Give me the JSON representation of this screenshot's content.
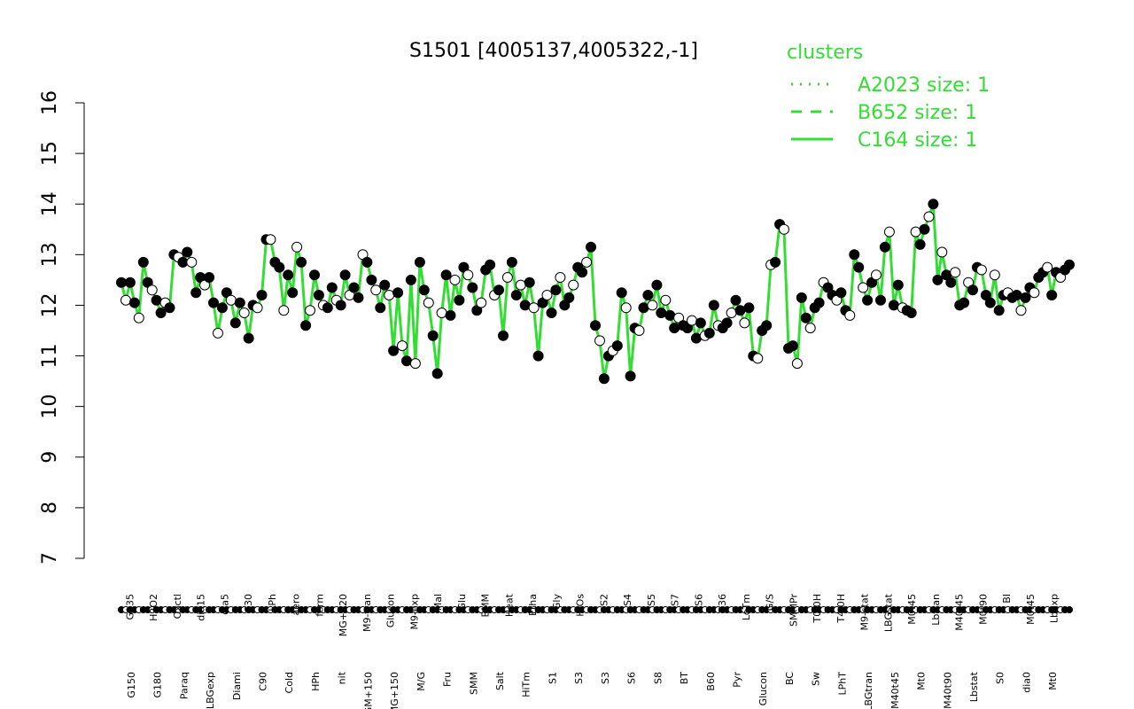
{
  "chart_data": {
    "type": "line",
    "title": "S1501 [4005137,4005322,-1]",
    "xlabel": "",
    "ylabel": "",
    "ylim": [
      7,
      16
    ],
    "yticks": [
      7,
      8,
      9,
      10,
      11,
      12,
      13,
      14,
      15,
      16
    ],
    "grid": false,
    "line_color": "#33dd33",
    "legend": {
      "title": "clusters",
      "placement": "top-right",
      "entries": [
        {
          "label": "A2023 size: 1",
          "style": "dotted"
        },
        {
          "label": "B652 size: 1",
          "style": "dashed"
        },
        {
          "label": "C164 size: 1",
          "style": "solid"
        }
      ]
    },
    "x_tick_labels_top": [
      "G135",
      "H2O2",
      "Oxctl",
      "dia15",
      "dia5",
      "C30",
      "LPh",
      "aero",
      "ferm",
      "MG+120",
      "M9-tran",
      "Glucon",
      "M9-exp",
      "Mal",
      "Glu",
      "BMM",
      "Heat",
      "Etha",
      "Gly",
      "HiOs",
      "S2",
      "S4",
      "S5",
      "S7",
      "S6",
      "B36",
      "LoTm",
      "G/S",
      "SMMPr",
      "T0.0H",
      "T4.0H",
      "M9-stat",
      "LBGstat",
      "M0t45",
      "Lbtran",
      "M40t45",
      "M0t90",
      "BI",
      "M0t45",
      "Lbexp"
    ],
    "x_tick_labels_bottom": [
      "G150",
      "G180",
      "Paraq",
      "LBGexp",
      "Diami",
      "C90",
      "Cold",
      "HPh",
      "nit",
      "GM+150",
      "MG+150",
      "M/G",
      "Fru",
      "SMM",
      "Salt",
      "HiTm",
      "S1",
      "S3",
      "S3",
      "S6",
      "S8",
      "BT",
      "B60",
      "Pyr",
      "Glucon",
      "BC",
      "Sw",
      "LPhT",
      "LBGtran",
      "M40t45",
      "Mt0",
      "M40t90",
      "Lbstat",
      "S0",
      "dia0",
      "Mt0"
    ],
    "points": [
      {
        "x": 1,
        "y": 12.45
      },
      {
        "x": 2,
        "y": 12.1
      },
      {
        "x": 3,
        "y": 12.45
      },
      {
        "x": 4,
        "y": 12.05
      },
      {
        "x": 5,
        "y": 11.75
      },
      {
        "x": 6,
        "y": 12.85
      },
      {
        "x": 7,
        "y": 12.45
      },
      {
        "x": 8,
        "y": 12.3
      },
      {
        "x": 9,
        "y": 12.1
      },
      {
        "x": 10,
        "y": 11.85
      },
      {
        "x": 11,
        "y": 12.05
      },
      {
        "x": 12,
        "y": 11.95
      },
      {
        "x": 13,
        "y": 13.0
      },
      {
        "x": 14,
        "y": 12.95
      },
      {
        "x": 15,
        "y": 12.85
      },
      {
        "x": 16,
        "y": 13.05
      },
      {
        "x": 17,
        "y": 12.85
      },
      {
        "x": 18,
        "y": 12.25
      },
      {
        "x": 19,
        "y": 12.55
      },
      {
        "x": 20,
        "y": 12.4
      },
      {
        "x": 21,
        "y": 12.55
      },
      {
        "x": 22,
        "y": 12.05
      },
      {
        "x": 23,
        "y": 11.45
      },
      {
        "x": 24,
        "y": 11.95
      },
      {
        "x": 25,
        "y": 12.25
      },
      {
        "x": 26,
        "y": 12.1
      },
      {
        "x": 27,
        "y": 11.65
      },
      {
        "x": 28,
        "y": 12.05
      },
      {
        "x": 29,
        "y": 11.85
      },
      {
        "x": 30,
        "y": 11.35
      },
      {
        "x": 31,
        "y": 12.0
      },
      {
        "x": 32,
        "y": 11.95
      },
      {
        "x": 33,
        "y": 12.2
      },
      {
        "x": 34,
        "y": 13.3
      },
      {
        "x": 35,
        "y": 13.3
      },
      {
        "x": 36,
        "y": 12.85
      },
      {
        "x": 37,
        "y": 12.75
      },
      {
        "x": 38,
        "y": 11.9
      },
      {
        "x": 39,
        "y": 12.6
      },
      {
        "x": 40,
        "y": 12.25
      },
      {
        "x": 41,
        "y": 13.15
      },
      {
        "x": 42,
        "y": 12.85
      },
      {
        "x": 43,
        "y": 11.6
      },
      {
        "x": 44,
        "y": 11.9
      },
      {
        "x": 45,
        "y": 12.6
      },
      {
        "x": 46,
        "y": 12.2
      },
      {
        "x": 47,
        "y": 12.0
      },
      {
        "x": 48,
        "y": 11.95
      },
      {
        "x": 49,
        "y": 12.35
      },
      {
        "x": 50,
        "y": 12.1
      },
      {
        "x": 51,
        "y": 12.0
      },
      {
        "x": 52,
        "y": 12.6
      },
      {
        "x": 53,
        "y": 12.2
      },
      {
        "x": 54,
        "y": 12.35
      },
      {
        "x": 55,
        "y": 12.15
      },
      {
        "x": 56,
        "y": 13.0
      },
      {
        "x": 57,
        "y": 12.85
      },
      {
        "x": 58,
        "y": 12.5
      },
      {
        "x": 59,
        "y": 12.3
      },
      {
        "x": 60,
        "y": 11.95
      },
      {
        "x": 61,
        "y": 12.4
      },
      {
        "x": 62,
        "y": 12.2
      },
      {
        "x": 63,
        "y": 11.1
      },
      {
        "x": 64,
        "y": 12.25
      },
      {
        "x": 65,
        "y": 11.2
      },
      {
        "x": 66,
        "y": 10.9
      },
      {
        "x": 67,
        "y": 12.5
      },
      {
        "x": 68,
        "y": 10.85
      },
      {
        "x": 69,
        "y": 12.85
      },
      {
        "x": 70,
        "y": 12.3
      },
      {
        "x": 71,
        "y": 12.05
      },
      {
        "x": 72,
        "y": 11.4
      },
      {
        "x": 73,
        "y": 10.65
      },
      {
        "x": 74,
        "y": 11.85
      },
      {
        "x": 75,
        "y": 12.6
      },
      {
        "x": 76,
        "y": 11.8
      },
      {
        "x": 77,
        "y": 12.5
      },
      {
        "x": 78,
        "y": 12.1
      },
      {
        "x": 79,
        "y": 12.75
      },
      {
        "x": 80,
        "y": 12.6
      },
      {
        "x": 81,
        "y": 12.35
      },
      {
        "x": 82,
        "y": 11.9
      },
      {
        "x": 83,
        "y": 12.05
      },
      {
        "x": 84,
        "y": 12.7
      },
      {
        "x": 85,
        "y": 12.8
      },
      {
        "x": 86,
        "y": 12.2
      },
      {
        "x": 87,
        "y": 12.3
      },
      {
        "x": 88,
        "y": 11.4
      },
      {
        "x": 89,
        "y": 12.55
      },
      {
        "x": 90,
        "y": 12.85
      },
      {
        "x": 91,
        "y": 12.2
      },
      {
        "x": 92,
        "y": 12.4
      },
      {
        "x": 93,
        "y": 12.0
      },
      {
        "x": 94,
        "y": 12.45
      },
      {
        "x": 95,
        "y": 11.95
      },
      {
        "x": 96,
        "y": 11.0
      },
      {
        "x": 97,
        "y": 12.05
      },
      {
        "x": 98,
        "y": 12.2
      },
      {
        "x": 99,
        "y": 11.85
      },
      {
        "x": 100,
        "y": 12.3
      },
      {
        "x": 101,
        "y": 12.55
      },
      {
        "x": 102,
        "y": 12.0
      },
      {
        "x": 103,
        "y": 12.15
      },
      {
        "x": 104,
        "y": 12.4
      },
      {
        "x": 105,
        "y": 12.75
      },
      {
        "x": 106,
        "y": 12.65
      },
      {
        "x": 107,
        "y": 12.85
      },
      {
        "x": 108,
        "y": 13.15
      },
      {
        "x": 109,
        "y": 11.6
      },
      {
        "x": 110,
        "y": 11.3
      },
      {
        "x": 111,
        "y": 10.55
      },
      {
        "x": 112,
        "y": 11.0
      },
      {
        "x": 113,
        "y": 11.1
      },
      {
        "x": 114,
        "y": 11.2
      },
      {
        "x": 115,
        "y": 12.25
      },
      {
        "x": 116,
        "y": 11.95
      },
      {
        "x": 117,
        "y": 10.6
      },
      {
        "x": 118,
        "y": 11.55
      },
      {
        "x": 119,
        "y": 11.5
      },
      {
        "x": 120,
        "y": 11.95
      },
      {
        "x": 121,
        "y": 12.2
      },
      {
        "x": 122,
        "y": 12.0
      },
      {
        "x": 123,
        "y": 12.4
      },
      {
        "x": 124,
        "y": 11.85
      },
      {
        "x": 125,
        "y": 12.1
      },
      {
        "x": 126,
        "y": 11.8
      },
      {
        "x": 127,
        "y": 11.55
      },
      {
        "x": 128,
        "y": 11.75
      },
      {
        "x": 129,
        "y": 11.6
      },
      {
        "x": 130,
        "y": 11.55
      },
      {
        "x": 131,
        "y": 11.7
      },
      {
        "x": 132,
        "y": 11.35
      },
      {
        "x": 133,
        "y": 11.65
      },
      {
        "x": 134,
        "y": 11.4
      },
      {
        "x": 135,
        "y": 11.45
      },
      {
        "x": 136,
        "y": 12.0
      },
      {
        "x": 137,
        "y": 11.6
      },
      {
        "x": 138,
        "y": 11.55
      },
      {
        "x": 139,
        "y": 11.65
      },
      {
        "x": 140,
        "y": 11.85
      },
      {
        "x": 141,
        "y": 12.1
      },
      {
        "x": 142,
        "y": 11.9
      },
      {
        "x": 143,
        "y": 11.65
      },
      {
        "x": 144,
        "y": 11.95
      },
      {
        "x": 145,
        "y": 11.0
      },
      {
        "x": 146,
        "y": 10.95
      },
      {
        "x": 147,
        "y": 11.5
      },
      {
        "x": 148,
        "y": 11.6
      },
      {
        "x": 149,
        "y": 12.8
      },
      {
        "x": 150,
        "y": 12.85
      },
      {
        "x": 151,
        "y": 13.6
      },
      {
        "x": 152,
        "y": 13.5
      },
      {
        "x": 153,
        "y": 11.15
      },
      {
        "x": 154,
        "y": 11.2
      },
      {
        "x": 155,
        "y": 10.85
      },
      {
        "x": 156,
        "y": 12.15
      },
      {
        "x": 157,
        "y": 11.75
      },
      {
        "x": 158,
        "y": 11.55
      },
      {
        "x": 159,
        "y": 11.95
      },
      {
        "x": 160,
        "y": 12.05
      },
      {
        "x": 161,
        "y": 12.45
      },
      {
        "x": 162,
        "y": 12.35
      },
      {
        "x": 163,
        "y": 12.2
      },
      {
        "x": 164,
        "y": 12.1
      },
      {
        "x": 165,
        "y": 12.25
      },
      {
        "x": 166,
        "y": 11.9
      },
      {
        "x": 167,
        "y": 11.8
      },
      {
        "x": 168,
        "y": 13.0
      },
      {
        "x": 169,
        "y": 12.75
      },
      {
        "x": 170,
        "y": 12.35
      },
      {
        "x": 171,
        "y": 12.1
      },
      {
        "x": 172,
        "y": 12.45
      },
      {
        "x": 173,
        "y": 12.6
      },
      {
        "x": 174,
        "y": 12.1
      },
      {
        "x": 175,
        "y": 13.15
      },
      {
        "x": 176,
        "y": 13.45
      },
      {
        "x": 177,
        "y": 12.0
      },
      {
        "x": 178,
        "y": 12.4
      },
      {
        "x": 179,
        "y": 11.95
      },
      {
        "x": 180,
        "y": 11.9
      },
      {
        "x": 181,
        "y": 11.85
      },
      {
        "x": 182,
        "y": 13.45
      },
      {
        "x": 183,
        "y": 13.2
      },
      {
        "x": 184,
        "y": 13.5
      },
      {
        "x": 185,
        "y": 13.75
      },
      {
        "x": 186,
        "y": 14.0
      },
      {
        "x": 187,
        "y": 12.5
      },
      {
        "x": 188,
        "y": 13.05
      },
      {
        "x": 189,
        "y": 12.6
      },
      {
        "x": 190,
        "y": 12.45
      },
      {
        "x": 191,
        "y": 12.65
      },
      {
        "x": 192,
        "y": 12.0
      },
      {
        "x": 193,
        "y": 12.05
      },
      {
        "x": 194,
        "y": 12.45
      },
      {
        "x": 195,
        "y": 12.3
      },
      {
        "x": 196,
        "y": 12.75
      },
      {
        "x": 197,
        "y": 12.7
      },
      {
        "x": 198,
        "y": 12.2
      },
      {
        "x": 199,
        "y": 12.05
      },
      {
        "x": 200,
        "y": 12.6
      },
      {
        "x": 201,
        "y": 11.9
      },
      {
        "x": 202,
        "y": 12.2
      },
      {
        "x": 203,
        "y": 12.25
      },
      {
        "x": 204,
        "y": 12.15
      },
      {
        "x": 205,
        "y": 12.2
      },
      {
        "x": 206,
        "y": 11.9
      },
      {
        "x": 207,
        "y": 12.15
      },
      {
        "x": 208,
        "y": 12.35
      },
      {
        "x": 209,
        "y": 12.25
      },
      {
        "x": 210,
        "y": 12.55
      },
      {
        "x": 211,
        "y": 12.65
      },
      {
        "x": 212,
        "y": 12.75
      },
      {
        "x": 213,
        "y": 12.2
      },
      {
        "x": 214,
        "y": 12.65
      },
      {
        "x": 215,
        "y": 12.55
      },
      {
        "x": 216,
        "y": 12.7
      },
      {
        "x": 217,
        "y": 12.8
      }
    ]
  }
}
